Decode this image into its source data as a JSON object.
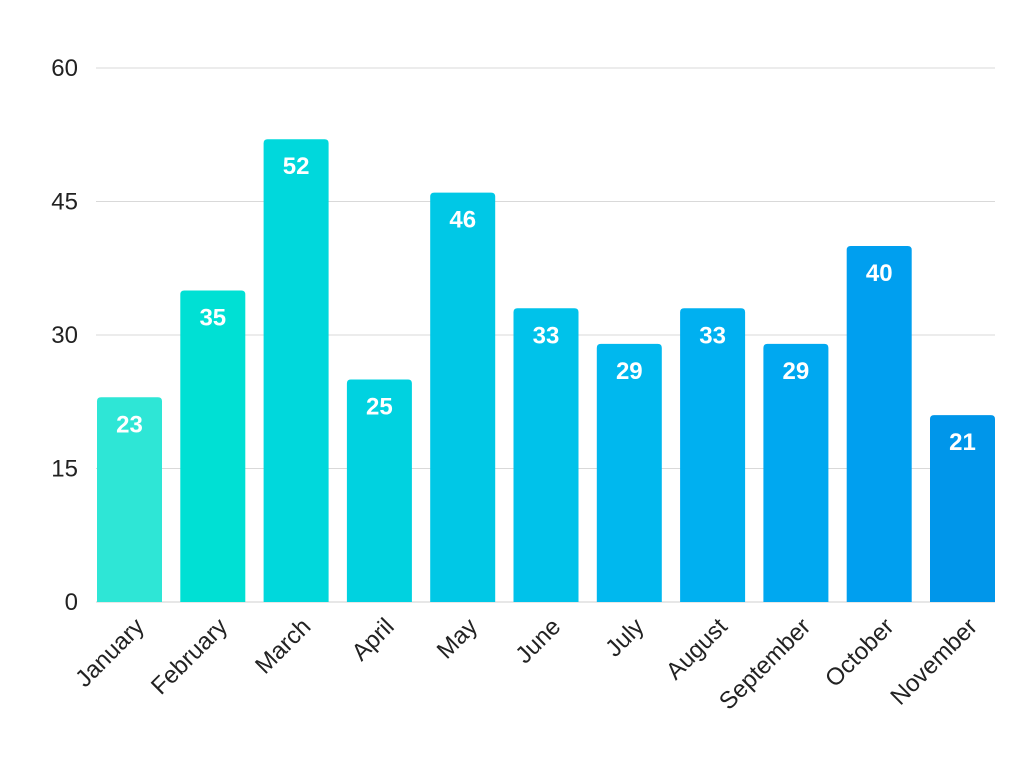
{
  "chart_data": {
    "type": "bar",
    "categories": [
      "January",
      "February",
      "March",
      "April",
      "May",
      "June",
      "July",
      "August",
      "September",
      "October",
      "November"
    ],
    "values": [
      23,
      35,
      52,
      25,
      46,
      33,
      29,
      33,
      29,
      40,
      21
    ],
    "title": "",
    "xlabel": "",
    "ylabel": "",
    "ylim": [
      0,
      60
    ],
    "yticks": [
      "0",
      "15",
      "30",
      "45",
      "60"
    ],
    "grid": true,
    "legend": "none",
    "data_labels": true,
    "bar_colors": [
      "#2ee6d6",
      "#00e0d4",
      "#00d8dc",
      "#00d2e0",
      "#00c8e6",
      "#00c2ea",
      "#00b8ee",
      "#00b0f0",
      "#00a8f0",
      "#009fef",
      "#0096ea"
    ],
    "label_color": "#ffffff",
    "grid_color": "#d9d9d9"
  }
}
